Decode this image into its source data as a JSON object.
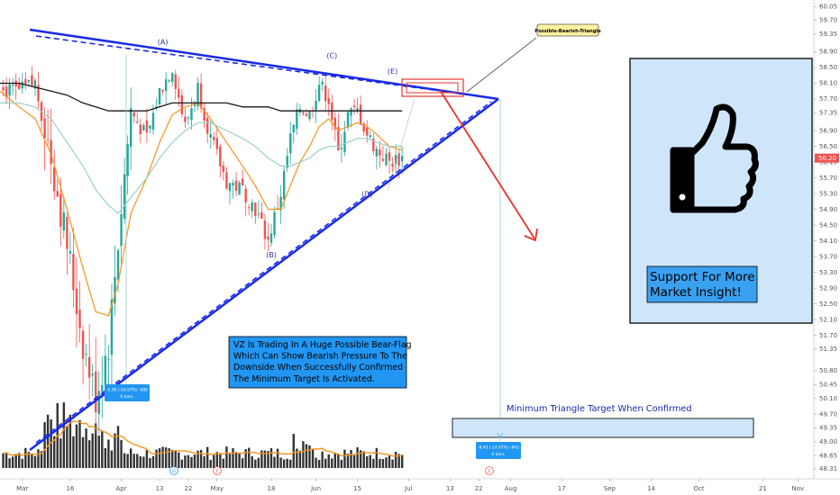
{
  "chart_data": {
    "type": "candlestick",
    "title": "",
    "xlabel": "",
    "ylabel": "",
    "ylim": [
      48.15,
      60.1
    ],
    "y_ticks": [
      48.31,
      48.65,
      49.0,
      49.35,
      49.7,
      50.1,
      50.45,
      50.8,
      51.35,
      51.7,
      52.1,
      52.5,
      52.9,
      53.3,
      53.7,
      54.1,
      54.5,
      54.9,
      55.3,
      55.7,
      56.1,
      56.5,
      56.9,
      57.35,
      57.7,
      58.1,
      58.5,
      58.9,
      59.35,
      59.7,
      60.05
    ],
    "y_tick_labels": [
      "48.31",
      "48.65",
      "49.00",
      "49.35",
      "49.70",
      "50.10",
      "50.45",
      "50.80",
      "51.35",
      "51.70",
      "52.10",
      "52.50",
      "52.90",
      "53.30",
      "53.70",
      "54.10",
      "54.50",
      "54.90",
      "55.30",
      "55.70",
      "56.10",
      "56.50",
      "56.90",
      "57.35",
      "57.70",
      "58.10",
      "58.50",
      "58.90",
      "59.35",
      "59.70",
      "60.05"
    ],
    "x_labels": [
      "Mar",
      "16",
      "Apr",
      "13",
      "22",
      "May",
      "18",
      "Jun",
      "15",
      "Jul",
      "13",
      "22",
      "Aug",
      "17",
      "Sep",
      "14",
      "Oct",
      "21",
      "Nov"
    ],
    "x_label_days": [
      1,
      16,
      32,
      44,
      53,
      62,
      79,
      93,
      106,
      122,
      135,
      144,
      154,
      170,
      185,
      198,
      213,
      233,
      244
    ],
    "last_price": "56.20",
    "price_series": {
      "name": "VZ",
      "days": [
        -6,
        0,
        5,
        10,
        15,
        20,
        24,
        28,
        31,
        35,
        40,
        44,
        48,
        52,
        56,
        60,
        65,
        70,
        74,
        78,
        82,
        85,
        88,
        91,
        94,
        97,
        100,
        103,
        106,
        109,
        112,
        116,
        120
      ],
      "values": [
        57.9,
        57.9,
        58.1,
        56.2,
        54.0,
        51.5,
        50.1,
        51.5,
        54.1,
        57.4,
        56.7,
        57.9,
        58.5,
        57.0,
        58.0,
        56.7,
        55.6,
        55.4,
        54.9,
        54.1,
        55.3,
        56.7,
        57.5,
        57.3,
        58.1,
        57.7,
        56.3,
        57.3,
        57.4,
        56.8,
        56.4,
        56.1,
        56.2
      ]
    },
    "ma_series": [
      {
        "color": "#f7931e",
        "values": [
          57.9,
          57.5,
          57.2,
          56.3,
          54.9,
          53.4,
          52.3,
          52.2,
          53.0,
          54.8,
          55.7,
          56.6,
          57.3,
          57.5,
          57.6,
          57.2,
          56.6,
          56.0,
          55.5,
          54.9,
          54.9,
          55.5,
          56.1,
          56.5,
          57.0,
          57.2,
          56.9,
          57.0,
          57.1,
          57.0,
          56.8,
          56.5,
          56.4
        ]
      },
      {
        "color": "#9ad1c4",
        "values": [
          57.6,
          57.6,
          57.5,
          57.2,
          56.6,
          56.0,
          55.4,
          55.0,
          54.8,
          55.2,
          55.7,
          56.2,
          56.6,
          56.9,
          57.1,
          57.1,
          56.9,
          56.7,
          56.5,
          56.2,
          56.0,
          56.0,
          56.1,
          56.2,
          56.4,
          56.5,
          56.5,
          56.6,
          56.7,
          56.7,
          56.6,
          56.5,
          56.5
        ]
      },
      {
        "color": "#1a1a1a",
        "values": [
          58.1,
          58.1,
          58.0,
          57.9,
          57.8,
          57.6,
          57.5,
          57.4,
          57.4,
          57.4,
          57.4,
          57.5,
          57.6,
          57.6,
          57.6,
          57.6,
          57.6,
          57.5,
          57.5,
          57.5,
          57.4,
          57.4,
          57.4,
          57.4,
          57.4,
          57.4,
          57.4,
          57.4,
          57.4,
          57.4,
          57.4,
          57.4,
          57.4
        ]
      }
    ],
    "wave_labels": [
      "(A)",
      "(B)",
      "(C)",
      "(D)",
      "(E)"
    ],
    "wave_points": [
      {
        "label": "(A)",
        "day": 45,
        "value": 58.95
      },
      {
        "label": "(B)",
        "day": 79,
        "value": 53.95
      },
      {
        "label": "(C)",
        "day": 98,
        "value": 58.6
      },
      {
        "label": "(D)",
        "day": 109,
        "value": 55.5
      },
      {
        "label": "(E)",
        "day": 117,
        "value": 58.2
      }
    ]
  },
  "annotations": {
    "callout": "Possible-Bearish-Triangle",
    "description_lines": [
      "VZ Is Trading In A Huge Possible Bear-Flag",
      "Which Can Show Bearish Pressure To The",
      "Downside When Successfully Confirmed",
      "The Minimum Target Is Activated."
    ],
    "target_label": "Minimum Triangle Target When Confirmed",
    "support_lines": [
      "Support For More",
      "Market Insight!"
    ],
    "measure_left": {
      "line1": "-5.56 (-14.67%) -986",
      "line2": "0 bars,"
    },
    "measure_right": {
      "line1": "-8.43 (-14.67%) -843",
      "line2": "0 bars,"
    },
    "time_markers": [
      "D",
      "E",
      "E"
    ]
  },
  "colors": {
    "up": "#26a69a",
    "down": "#ef5350",
    "trendline": "#1a2be6",
    "arrow": "#e8322e",
    "support_bg": "#cfe6fa",
    "annotation_bg": "#2196f3"
  },
  "icon": "thumbs-up-icon"
}
